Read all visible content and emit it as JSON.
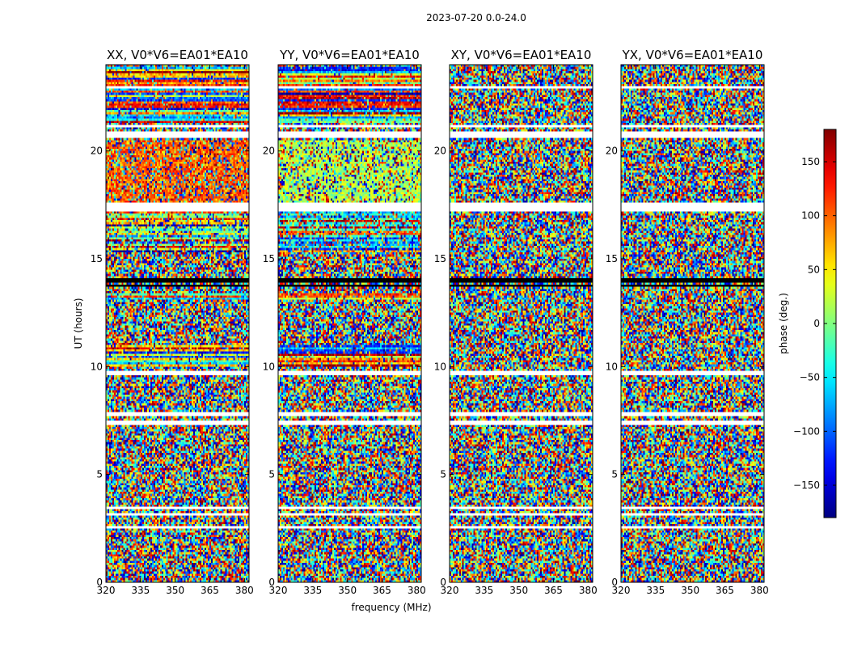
{
  "chart_data": {
    "type": "heatmap",
    "suptitle": "2023-07-20 0.0-24.0",
    "xlabel": "frequency (MHz)",
    "ylabel": "UT (hours)",
    "xlim": [
      320,
      382
    ],
    "ylim": [
      0,
      24
    ],
    "xticks": [
      "320",
      "335",
      "350",
      "365",
      "380"
    ],
    "yticks": [
      "0",
      "5",
      "10",
      "15",
      "20"
    ],
    "colorbar": {
      "label": "phase (deg.)",
      "range": [
        -180,
        180
      ],
      "ticks": [
        "150",
        "100",
        "50",
        "0",
        "−50",
        "−100",
        "−150"
      ],
      "tick_values": [
        150,
        100,
        50,
        0,
        -50,
        -100,
        -150
      ],
      "colormap": "jet"
    },
    "panels": [
      {
        "title": "XX, V0*V6=EA01*EA10",
        "pol": "XX"
      },
      {
        "title": "YY, V0*V6=EA01*EA10",
        "pol": "YY"
      },
      {
        "title": "XY, V0*V6=EA01*EA10",
        "pol": "XY"
      },
      {
        "title": "YX, V0*V6=EA01*EA10",
        "pol": "YX"
      }
    ],
    "gaps_hours": [
      [
        2.55,
        2.62
      ],
      [
        3.15,
        3.25
      ],
      [
        3.45,
        3.5
      ],
      [
        7.3,
        7.5
      ],
      [
        7.75,
        7.95
      ],
      [
        9.6,
        9.85
      ],
      [
        17.2,
        17.6
      ],
      [
        20.6,
        20.9
      ],
      [
        21.05,
        21.25
      ],
      [
        22.85,
        23.0
      ]
    ]
  }
}
